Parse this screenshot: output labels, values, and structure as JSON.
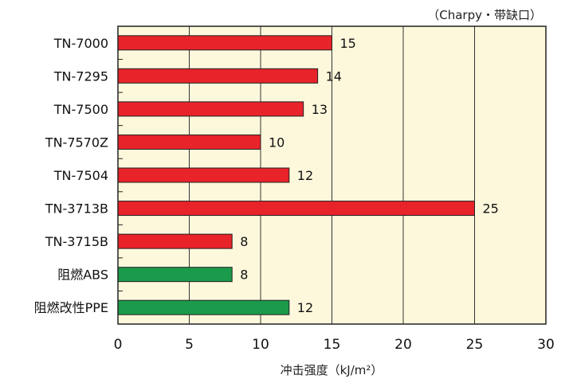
{
  "chart_data": {
    "type": "bar",
    "orientation": "horizontal",
    "annotation": "（Charpy・带缺口）",
    "xlabel": "冲击强度（kJ/m²）",
    "ylabel": "",
    "xlim": [
      0,
      30
    ],
    "xticks": [
      "0",
      "5",
      "10",
      "15",
      "20",
      "25",
      "30"
    ],
    "grid": true,
    "categories": [
      "TN-7000",
      "TN-7295",
      "TN-7500",
      "TN-7570Z",
      "TN-7504",
      "TN-3713B",
      "TN-3715B",
      "阻燃ABS",
      "阻燃改性PPE"
    ],
    "values": [
      15,
      14,
      13,
      10,
      12,
      25,
      8,
      8,
      12
    ],
    "value_labels": [
      "15",
      "14",
      "13",
      "10",
      "12",
      "25",
      "8",
      "8",
      "12"
    ],
    "bar_colors": [
      "#e8232a",
      "#e8232a",
      "#e8232a",
      "#e8232a",
      "#e8232a",
      "#e8232a",
      "#e8232a",
      "#1a9a4a",
      "#1a9a4a"
    ],
    "plot_background": "#fdf8dc",
    "frame_color": "#222222"
  }
}
